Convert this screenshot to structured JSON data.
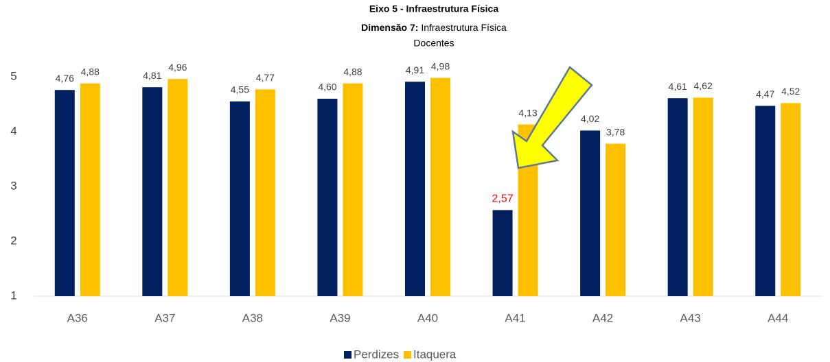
{
  "chart_data": {
    "type": "bar",
    "title": "Eixo 5 - Infraestrutura Física",
    "subtitle": {
      "label": "Dimensão 7:",
      "text": "Infraestrutura Física"
    },
    "subtitle2": "Docentes",
    "categories": [
      "A36",
      "A37",
      "A38",
      "A39",
      "A40",
      "A41",
      "A42",
      "A43",
      "A44"
    ],
    "series": [
      {
        "name": "Perdizes",
        "color": "#002060",
        "values": [
          4.76,
          4.81,
          4.55,
          4.6,
          4.91,
          2.57,
          4.02,
          4.61,
          4.47
        ],
        "value_labels": [
          "4,76",
          "4,81",
          "4,55",
          "4,60",
          "4,91",
          "2,57",
          "4,02",
          "4,61",
          "4,47"
        ]
      },
      {
        "name": "Itaquera",
        "color": "#ffc000",
        "values": [
          4.88,
          4.96,
          4.77,
          4.88,
          4.98,
          4.13,
          3.78,
          4.62,
          4.52
        ],
        "value_labels": [
          "4,88",
          "4,96",
          "4,77",
          "4,88",
          "4,98",
          "4,13",
          "3,78",
          "4,62",
          "4,52"
        ]
      }
    ],
    "highlight": {
      "series": 0,
      "index": 5,
      "color": "#ff0000"
    },
    "ylim": [
      1,
      5.4
    ],
    "yticks": [
      1,
      2,
      3,
      4,
      5
    ],
    "grid": false,
    "legend": "bottom"
  }
}
